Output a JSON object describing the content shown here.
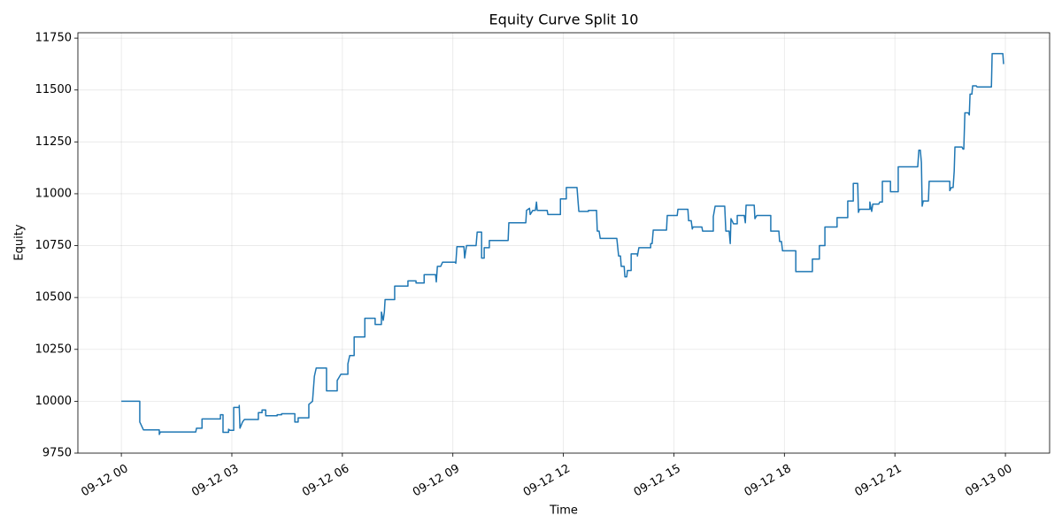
{
  "chart_data": {
    "type": "line",
    "title": "Equity Curve Split 10",
    "x_label": "Time",
    "y_label": "Equity",
    "color": "#1f77b4",
    "grid": true,
    "xlim": [
      -1.18,
      25.2
    ],
    "ylim": [
      9750,
      11776
    ],
    "xticks": [
      {
        "value": 0,
        "label": "09-12 00"
      },
      {
        "value": 3,
        "label": "09-12 03"
      },
      {
        "value": 6,
        "label": "09-12 06"
      },
      {
        "value": 9,
        "label": "09-12 09"
      },
      {
        "value": 12,
        "label": "09-12 12"
      },
      {
        "value": 15,
        "label": "09-12 15"
      },
      {
        "value": 18,
        "label": "09-12 18"
      },
      {
        "value": 21,
        "label": "09-12 21"
      },
      {
        "value": 24,
        "label": "09-13 00"
      }
    ],
    "yticks": [
      9750,
      10000,
      10250,
      10500,
      10750,
      11000,
      11250,
      11500,
      11750
    ],
    "x": [
      0,
      0.5,
      0.5,
      0.6,
      1.03,
      1.03,
      1.06,
      2.02,
      2.04,
      2.19,
      2.19,
      2.69,
      2.69,
      2.76,
      2.76,
      2.91,
      2.91,
      2.95,
      3.05,
      3.05,
      3.2,
      3.2,
      3.22,
      3.29,
      3.34,
      3.72,
      3.72,
      3.82,
      3.82,
      3.92,
      3.92,
      4.23,
      4.23,
      4.35,
      4.35,
      4.71,
      4.71,
      4.8,
      4.8,
      5.09,
      5.09,
      5.19,
      5.24,
      5.29,
      5.57,
      5.57,
      5.86,
      5.86,
      5.96,
      6.15,
      6.15,
      6.2,
      6.32,
      6.32,
      6.61,
      6.61,
      6.89,
      6.89,
      7.06,
      7.06,
      7.11,
      7.14,
      7.16,
      7.42,
      7.42,
      7.78,
      7.78,
      8.0,
      8.0,
      8.22,
      8.22,
      8.53,
      8.55,
      8.58,
      8.67,
      8.72,
      9.06,
      9.08,
      9.11,
      9.3,
      9.32,
      9.37,
      9.63,
      9.66,
      9.78,
      9.78,
      9.85,
      9.85,
      9.99,
      9.99,
      10.5,
      10.52,
      10.98,
      11.0,
      11.08,
      11.1,
      11.17,
      11.24,
      11.27,
      11.29,
      11.56,
      11.58,
      11.92,
      11.92,
      12.08,
      12.08,
      12.37,
      12.4,
      12.42,
      12.68,
      12.68,
      12.9,
      12.92,
      12.97,
      13.0,
      13.45,
      13.5,
      13.55,
      13.57,
      13.65,
      13.67,
      13.72,
      13.74,
      13.84,
      13.84,
      14.01,
      14.01,
      14.05,
      14.37,
      14.37,
      14.41,
      14.44,
      14.8,
      14.82,
      15.09,
      15.11,
      15.38,
      15.4,
      15.47,
      15.5,
      15.52,
      15.76,
      15.78,
      16.07,
      16.07,
      16.12,
      16.38,
      16.41,
      16.5,
      16.53,
      16.55,
      16.62,
      16.72,
      16.72,
      16.91,
      16.94,
      16.96,
      17.18,
      17.2,
      17.25,
      17.63,
      17.63,
      17.85,
      17.87,
      17.92,
      17.95,
      18.31,
      18.31,
      18.76,
      18.76,
      18.95,
      18.95,
      19.1,
      19.1,
      19.43,
      19.43,
      19.72,
      19.72,
      19.87,
      19.87,
      19.99,
      20.01,
      20.04,
      20.32,
      20.32,
      20.37,
      20.4,
      20.56,
      20.59,
      20.66,
      20.66,
      20.88,
      20.88,
      21.09,
      21.09,
      21.62,
      21.65,
      21.69,
      21.72,
      21.74,
      21.77,
      21.91,
      21.93,
      22.49,
      22.49,
      22.53,
      22.58,
      22.61,
      22.63,
      22.82,
      22.85,
      22.87,
      22.9,
      22.99,
      23.02,
      23.04,
      23.09,
      23.11,
      23.21,
      23.23,
      23.62,
      23.64,
      23.93,
      23.95
    ],
    "values": [
      10000,
      10000,
      9900,
      9862,
      9862,
      9840,
      9852,
      9852,
      9870,
      9870,
      9915,
      9915,
      9935,
      9935,
      9850,
      9850,
      9865,
      9860,
      9860,
      9970,
      9970,
      9980,
      9870,
      9900,
      9912,
      9912,
      9945,
      9945,
      9958,
      9958,
      9930,
      9930,
      9935,
      9935,
      9940,
      9940,
      9900,
      9900,
      9920,
      9920,
      9985,
      10000,
      10120,
      10160,
      10160,
      10050,
      10050,
      10100,
      10130,
      10130,
      10180,
      10220,
      10220,
      10310,
      10310,
      10400,
      10400,
      10370,
      10370,
      10430,
      10390,
      10430,
      10490,
      10490,
      10555,
      10555,
      10580,
      10580,
      10570,
      10570,
      10610,
      10610,
      10575,
      10650,
      10650,
      10670,
      10670,
      10665,
      10745,
      10745,
      10690,
      10750,
      10750,
      10815,
      10815,
      10690,
      10690,
      10740,
      10740,
      10775,
      10775,
      10860,
      10860,
      10920,
      10930,
      10900,
      10920,
      10920,
      10960,
      10920,
      10920,
      10900,
      10900,
      10975,
      10975,
      11030,
      11030,
      10960,
      10915,
      10915,
      10920,
      10920,
      10820,
      10820,
      10785,
      10785,
      10700,
      10700,
      10650,
      10650,
      10600,
      10600,
      10630,
      10630,
      10710,
      10710,
      10700,
      10740,
      10740,
      10760,
      10760,
      10825,
      10825,
      10895,
      10895,
      10925,
      10925,
      10870,
      10870,
      10830,
      10840,
      10840,
      10820,
      10820,
      10890,
      10940,
      10940,
      10820,
      10820,
      10760,
      10880,
      10855,
      10855,
      10895,
      10895,
      10860,
      10945,
      10945,
      10880,
      10895,
      10895,
      10820,
      10820,
      10770,
      10770,
      10725,
      10725,
      10625,
      10625,
      10685,
      10685,
      10750,
      10750,
      10840,
      10840,
      10885,
      10885,
      10965,
      10965,
      11050,
      11050,
      10910,
      10925,
      10925,
      10960,
      10915,
      10950,
      10950,
      10960,
      10960,
      11060,
      11060,
      11010,
      11010,
      11130,
      11130,
      11210,
      11210,
      11150,
      10940,
      10965,
      10965,
      11060,
      11060,
      11015,
      11030,
      11030,
      11110,
      11225,
      11225,
      11215,
      11215,
      11390,
      11390,
      11380,
      11480,
      11480,
      11520,
      11520,
      11515,
      11515,
      11675,
      11675,
      11625
    ]
  }
}
